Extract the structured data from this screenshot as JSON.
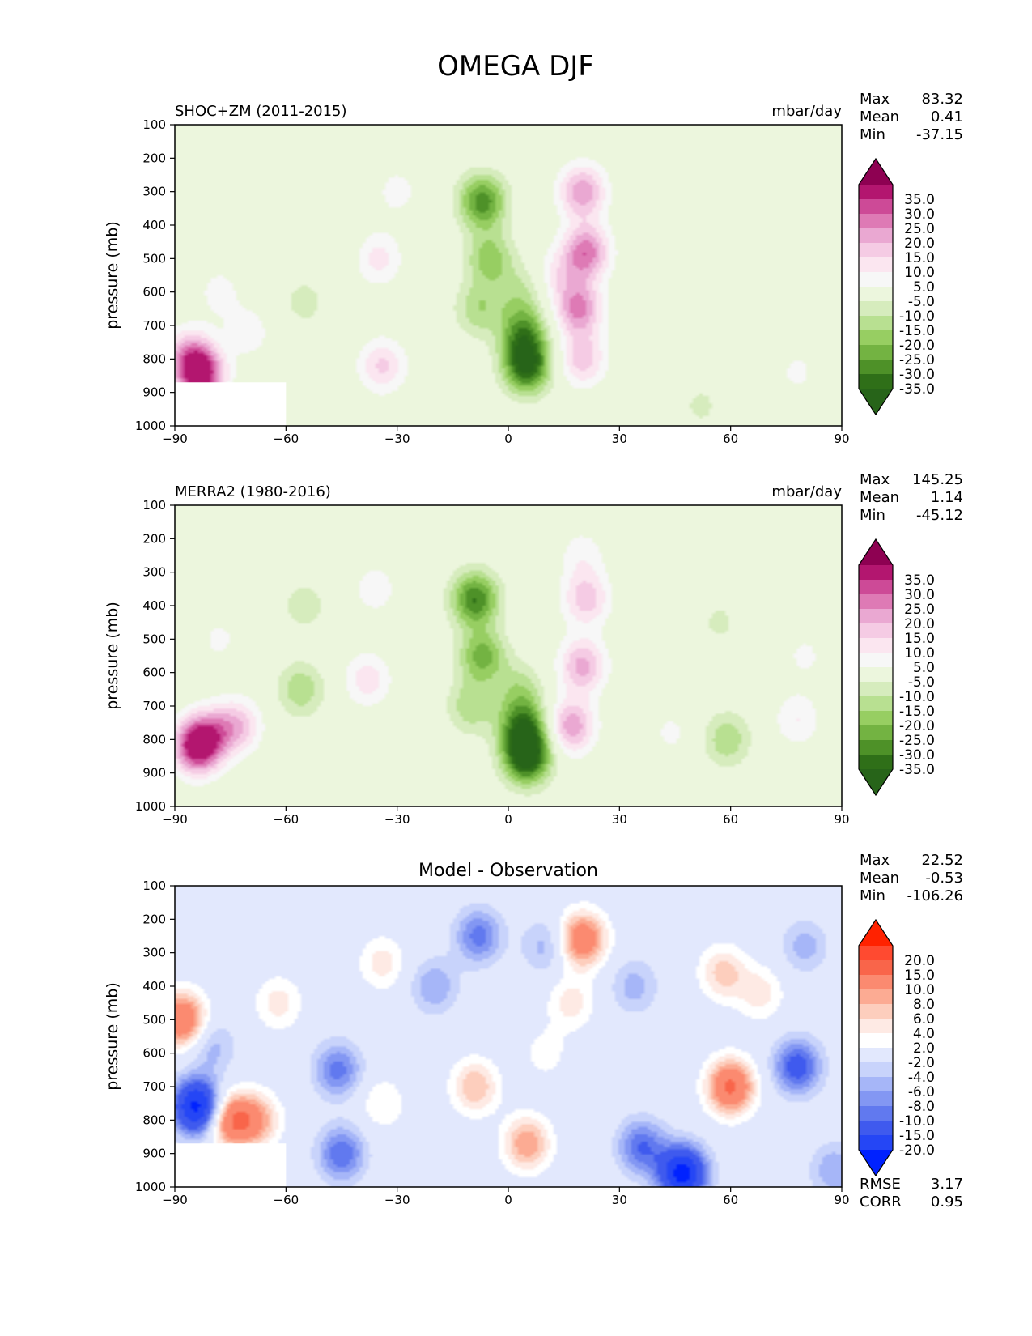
{
  "figure": {
    "title": "OMEGA DJF"
  },
  "chart_data": [
    {
      "type": "heatmap",
      "left_title": "SHOC+ZM (2011-2015)",
      "center_title": "",
      "units": "mbar/day",
      "ylabel": "pressure (mb)",
      "xlim": [
        -90,
        90
      ],
      "ylim": [
        1000,
        100
      ],
      "x_ticks": [
        "−90",
        "−60",
        "−30",
        "0",
        "30",
        "60",
        "90"
      ],
      "y_ticks": [
        "100",
        "200",
        "300",
        "400",
        "500",
        "600",
        "700",
        "800",
        "900",
        "1000"
      ],
      "stats": [
        {
          "label": "Max",
          "value": "83.32"
        },
        {
          "label": "Mean",
          "value": "0.41"
        },
        {
          "label": "Min",
          "value": "-37.15"
        }
      ],
      "stats_bottom": [],
      "colorbar": {
        "levels": [
          "35.0",
          "30.0",
          "25.0",
          "20.0",
          "15.0",
          "10.0",
          "5.0",
          "-5.0",
          "-10.0",
          "-15.0",
          "-20.0",
          "-25.0",
          "-30.0",
          "-35.0"
        ],
        "colors": [
          "#8e0152",
          "#b3166f",
          "#cd4a97",
          "#de7ab5",
          "#eaa8d2",
          "#f5cbe4",
          "#fbe6f0",
          "#f7f7f7",
          "#ecf6dd",
          "#d6ecbd",
          "#b8e091",
          "#97ce62",
          "#73b342",
          "#4e9128",
          "#2f6f18",
          "#276419"
        ]
      },
      "features": [
        {
          "x": -83,
          "p": 850,
          "v": 38
        },
        {
          "x": -86,
          "p": 790,
          "v": 20
        },
        {
          "x": -78,
          "p": 600,
          "v": 7
        },
        {
          "x": -70,
          "p": 720,
          "v": 8
        },
        {
          "x": -55,
          "p": 630,
          "v": -7
        },
        {
          "x": -48,
          "p": 420,
          "v": -5
        },
        {
          "x": -35,
          "p": 500,
          "v": 12
        },
        {
          "x": -34,
          "p": 820,
          "v": 16
        },
        {
          "x": -30,
          "p": 300,
          "v": 7
        },
        {
          "x": -7,
          "p": 330,
          "v": -28
        },
        {
          "x": -5,
          "p": 500,
          "v": -18
        },
        {
          "x": -8,
          "p": 650,
          "v": -14
        },
        {
          "x": 4,
          "p": 720,
          "v": -24
        },
        {
          "x": 5,
          "p": 820,
          "v": -36
        },
        {
          "x": 3,
          "p": 600,
          "v": -10
        },
        {
          "x": 20,
          "p": 300,
          "v": 24
        },
        {
          "x": 21,
          "p": 480,
          "v": 28
        },
        {
          "x": 19,
          "p": 650,
          "v": 26
        },
        {
          "x": 20,
          "p": 800,
          "v": 18
        },
        {
          "x": 14,
          "p": 550,
          "v": 10
        },
        {
          "x": 52,
          "p": 940,
          "v": -6
        },
        {
          "x": 78,
          "p": 840,
          "v": 6
        }
      ]
    },
    {
      "type": "heatmap",
      "left_title": "MERRA2 (1980-2016)",
      "center_title": "",
      "units": "mbar/day",
      "ylabel": "pressure (mb)",
      "xlim": [
        -90,
        90
      ],
      "ylim": [
        1000,
        100
      ],
      "x_ticks": [
        "−90",
        "−60",
        "−30",
        "0",
        "30",
        "60",
        "90"
      ],
      "y_ticks": [
        "100",
        "200",
        "300",
        "400",
        "500",
        "600",
        "700",
        "800",
        "900",
        "1000"
      ],
      "stats": [
        {
          "label": "Max",
          "value": "145.25"
        },
        {
          "label": "Mean",
          "value": "1.14"
        },
        {
          "label": "Min",
          "value": "-45.12"
        }
      ],
      "stats_bottom": [],
      "colorbar": {
        "levels": [
          "35.0",
          "30.0",
          "25.0",
          "20.0",
          "15.0",
          "10.0",
          "5.0",
          "-5.0",
          "-10.0",
          "-15.0",
          "-20.0",
          "-25.0",
          "-30.0",
          "-35.0"
        ],
        "colors": [
          "#8e0152",
          "#b3166f",
          "#cd4a97",
          "#de7ab5",
          "#eaa8d2",
          "#f5cbe4",
          "#fbe6f0",
          "#f7f7f7",
          "#ecf6dd",
          "#d6ecbd",
          "#b8e091",
          "#97ce62",
          "#73b342",
          "#4e9128",
          "#2f6f18",
          "#276419"
        ]
      },
      "features": [
        {
          "x": -84,
          "p": 820,
          "v": 40
        },
        {
          "x": -80,
          "p": 780,
          "v": 14
        },
        {
          "x": -73,
          "p": 760,
          "v": 18
        },
        {
          "x": -78,
          "p": 500,
          "v": 6
        },
        {
          "x": -56,
          "p": 650,
          "v": -14
        },
        {
          "x": -55,
          "p": 400,
          "v": -8
        },
        {
          "x": -38,
          "p": 620,
          "v": 13
        },
        {
          "x": -36,
          "p": 350,
          "v": 8
        },
        {
          "x": -9,
          "p": 380,
          "v": -30
        },
        {
          "x": -7,
          "p": 550,
          "v": -22
        },
        {
          "x": -10,
          "p": 700,
          "v": -14
        },
        {
          "x": 4,
          "p": 760,
          "v": -28
        },
        {
          "x": 5,
          "p": 850,
          "v": -40
        },
        {
          "x": 3,
          "p": 650,
          "v": -12
        },
        {
          "x": 21,
          "p": 380,
          "v": 18
        },
        {
          "x": 20,
          "p": 580,
          "v": 22
        },
        {
          "x": 17,
          "p": 760,
          "v": 24
        },
        {
          "x": 20,
          "p": 250,
          "v": 8
        },
        {
          "x": 44,
          "p": 780,
          "v": 6
        },
        {
          "x": 59,
          "p": 800,
          "v": -14
        },
        {
          "x": 57,
          "p": 450,
          "v": -6
        },
        {
          "x": 78,
          "p": 740,
          "v": 10
        },
        {
          "x": 80,
          "p": 550,
          "v": 6
        }
      ]
    },
    {
      "type": "heatmap",
      "left_title": "",
      "center_title": "Model - Observation",
      "units": "",
      "ylabel": "pressure (mb)",
      "xlim": [
        -90,
        90
      ],
      "ylim": [
        1000,
        100
      ],
      "x_ticks": [
        "−90",
        "−60",
        "−30",
        "0",
        "30",
        "60",
        "90"
      ],
      "y_ticks": [
        "100",
        "200",
        "300",
        "400",
        "500",
        "600",
        "700",
        "800",
        "900",
        "1000"
      ],
      "stats": [
        {
          "label": "Max",
          "value": "22.52"
        },
        {
          "label": "Mean",
          "value": "-0.53"
        },
        {
          "label": "Min",
          "value": "-106.26"
        }
      ],
      "stats_bottom": [
        {
          "label": "RMSE",
          "value": "3.17"
        },
        {
          "label": "CORR",
          "value": "0.95"
        }
      ],
      "colorbar": {
        "levels": [
          "20.0",
          "15.0",
          "10.0",
          "8.0",
          "6.0",
          "4.0",
          "2.0",
          "-2.0",
          "-4.0",
          "-6.0",
          "-8.0",
          "-10.0",
          "-15.0",
          "-20.0"
        ],
        "colors": [
          "#ff2200",
          "#ff4a30",
          "#f9654a",
          "#fb8a70",
          "#fcab93",
          "#fdcebd",
          "#feeae4",
          "#ffffff",
          "#e2e8fd",
          "#c8d3fb",
          "#a6b6f8",
          "#8397f3",
          "#6179ef",
          "#3f5aee",
          "#2546f5",
          "#0022ff"
        ]
      },
      "features": [
        {
          "x": -88,
          "p": 500,
          "v": 15
        },
        {
          "x": -84,
          "p": 760,
          "v": -22
        },
        {
          "x": -75,
          "p": 800,
          "v": 14
        },
        {
          "x": -68,
          "p": 800,
          "v": 9
        },
        {
          "x": -80,
          "p": 580,
          "v": -5
        },
        {
          "x": -62,
          "p": 450,
          "v": 5
        },
        {
          "x": -46,
          "p": 650,
          "v": -9
        },
        {
          "x": -45,
          "p": 900,
          "v": -10
        },
        {
          "x": -34,
          "p": 330,
          "v": 5
        },
        {
          "x": -34,
          "p": 750,
          "v": 4
        },
        {
          "x": -20,
          "p": 400,
          "v": -6
        },
        {
          "x": -8,
          "p": 250,
          "v": -9
        },
        {
          "x": -9,
          "p": 700,
          "v": 8
        },
        {
          "x": 5,
          "p": 870,
          "v": 10
        },
        {
          "x": 10,
          "p": 600,
          "v": 3
        },
        {
          "x": 20,
          "p": 260,
          "v": 14
        },
        {
          "x": 17,
          "p": 450,
          "v": 5
        },
        {
          "x": 10,
          "p": 280,
          "v": -5
        },
        {
          "x": 34,
          "p": 400,
          "v": -5
        },
        {
          "x": 36,
          "p": 880,
          "v": -10
        },
        {
          "x": 47,
          "p": 960,
          "v": -22
        },
        {
          "x": 60,
          "p": 700,
          "v": 16
        },
        {
          "x": 58,
          "p": 360,
          "v": 7
        },
        {
          "x": 68,
          "p": 420,
          "v": 5
        },
        {
          "x": 78,
          "p": 640,
          "v": -12
        },
        {
          "x": 80,
          "p": 280,
          "v": -5
        },
        {
          "x": 88,
          "p": 950,
          "v": -6
        }
      ]
    }
  ]
}
